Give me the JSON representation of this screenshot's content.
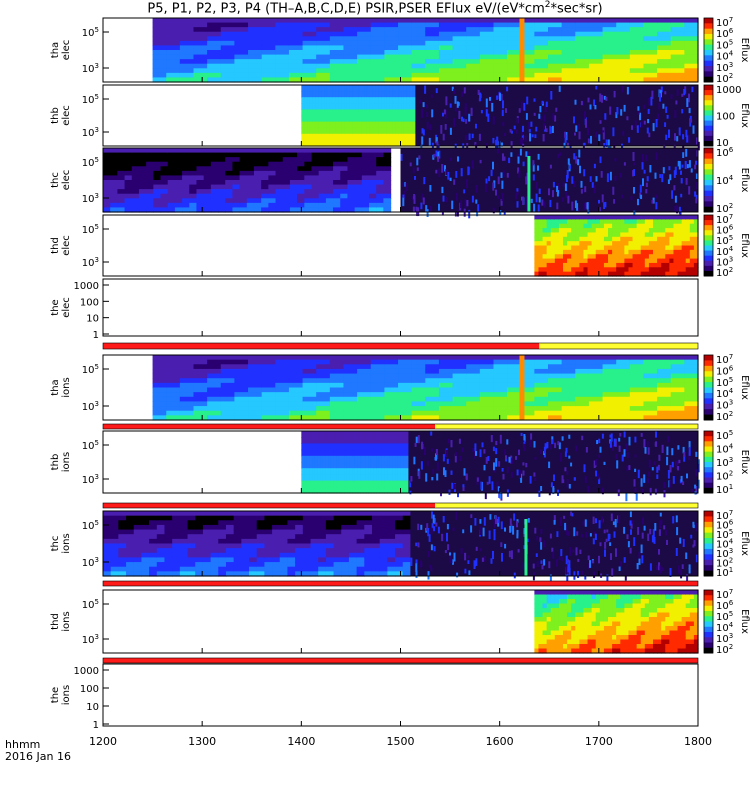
{
  "page": {
    "title_parts": [
      "P5, P1, P2, P3, P4 (TH–A,B,C,D,E) PSIR,PSER EFlux eV/(eV*cm",
      "2",
      "*sec*sr)"
    ],
    "footer": {
      "time_label": "hhmm",
      "date_label": "2016 Jan 16"
    }
  },
  "colors": {
    "spectrum": [
      "#000000",
      "#2a0070",
      "#4a1fb0",
      "#2030ff",
      "#1f78ff",
      "#25c8ff",
      "#28f08a",
      "#7df01e",
      "#f0f000",
      "#ffa000",
      "#ff2a00",
      "#b50000"
    ],
    "bar_red": "#ff1a1a",
    "bar_yellow": "#ffff33"
  },
  "chart_data": {
    "type": "heatmap",
    "x_axis": {
      "range": [
        1200,
        1800
      ],
      "ticks": [
        1200,
        1300,
        1400,
        1500,
        1600,
        1700,
        1800
      ]
    },
    "colorbar_label": "Eflux",
    "panels": [
      {
        "label": [
          "tha",
          "elec"
        ],
        "y_ticks": [
          "10^5",
          "10^3"
        ],
        "colorbar_ticks": [
          "10^7",
          "10^6",
          "10^5",
          "10^4",
          "10^3",
          "10^2"
        ],
        "data_start": 1250,
        "data_end": 1800,
        "gap": [
          1620,
          1625
        ],
        "level_left": 5,
        "level_right": 9,
        "pattern": "smooth"
      },
      {
        "label": [
          "thb",
          "elec"
        ],
        "y_ticks": [
          "10^5",
          "10^3"
        ],
        "colorbar_ticks": [
          "1000",
          "100",
          "10"
        ],
        "data_start": 1400,
        "data_end": 1515,
        "noise_after": 1515,
        "level_left": 8,
        "level_right": 8,
        "pattern": "blocky"
      },
      {
        "label": [
          "thc",
          "elec"
        ],
        "y_ticks": [
          "10^5",
          "10^3"
        ],
        "colorbar_ticks": [
          "10^6",
          "10^4",
          "10^2"
        ],
        "data_start": 1200,
        "data_end": 1490,
        "noise_after": 1500,
        "level_left": 3,
        "level_right": 4,
        "pattern": "smooth",
        "spike": 1628
      },
      {
        "label": [
          "thd",
          "elec"
        ],
        "y_ticks": [
          "10^5",
          "10^3"
        ],
        "colorbar_ticks": [
          "10^7",
          "10^6",
          "10^5",
          "10^4",
          "10^3",
          "10^2"
        ],
        "data_start": 1635,
        "data_end": 1800,
        "level_left": 10,
        "level_right": 11,
        "pattern": "smooth"
      },
      {
        "label": [
          "the",
          "elec"
        ],
        "y_ticks": [
          "1000",
          "100",
          "10",
          "1"
        ],
        "colorbar_ticks": [],
        "empty": true
      },
      {
        "label": [
          "tha",
          "ions"
        ],
        "y_ticks": [
          "10^5",
          "10^3"
        ],
        "colorbar_ticks": [
          "10^7",
          "10^6",
          "10^5",
          "10^4",
          "10^3",
          "10^2"
        ],
        "data_start": 1250,
        "data_end": 1800,
        "gap": [
          1620,
          1625
        ],
        "level_left": 5,
        "level_right": 9,
        "pattern": "smooth"
      },
      {
        "label": [
          "thb",
          "ions"
        ],
        "y_ticks": [
          "10^5",
          "10^3"
        ],
        "colorbar_ticks": [
          "10^5",
          "10^4",
          "10^3",
          "10^2",
          "10^1"
        ],
        "data_start": 1400,
        "data_end": 1508,
        "noise_after": 1508,
        "level_left": 6,
        "level_right": 6,
        "pattern": "blocky"
      },
      {
        "label": [
          "thc",
          "ions"
        ],
        "y_ticks": [
          "10^5",
          "10^3"
        ],
        "colorbar_ticks": [
          "10^7",
          "10^6",
          "10^5",
          "10^4",
          "10^3",
          "10^2",
          "10^1"
        ],
        "data_start": 1200,
        "data_end": 1510,
        "noise_after": 1510,
        "level_left": 4,
        "level_right": 4,
        "pattern": "smooth",
        "spike": 1625
      },
      {
        "label": [
          "thd",
          "ions"
        ],
        "y_ticks": [
          "10^5",
          "10^3"
        ],
        "colorbar_ticks": [
          "10^7",
          "10^6",
          "10^5",
          "10^4",
          "10^3",
          "10^2"
        ],
        "data_start": 1635,
        "data_end": 1800,
        "level_left": 9,
        "level_right": 11,
        "pattern": "smooth"
      },
      {
        "label": [
          "the",
          "ions"
        ],
        "y_ticks": [
          "1000",
          "100",
          "10",
          "1"
        ],
        "colorbar_ticks": [],
        "empty": true
      }
    ],
    "mode_bars": [
      {
        "red_until": 1640,
        "yellow_after": 1640
      },
      {
        "red_until": 1535,
        "yellow_after": 1535
      },
      {
        "red_until": 1535,
        "yellow_after": 1535
      },
      {
        "red_until": 1800,
        "yellow_after": 1800
      },
      {
        "red_until": 1800,
        "yellow_after": 1800
      }
    ]
  }
}
